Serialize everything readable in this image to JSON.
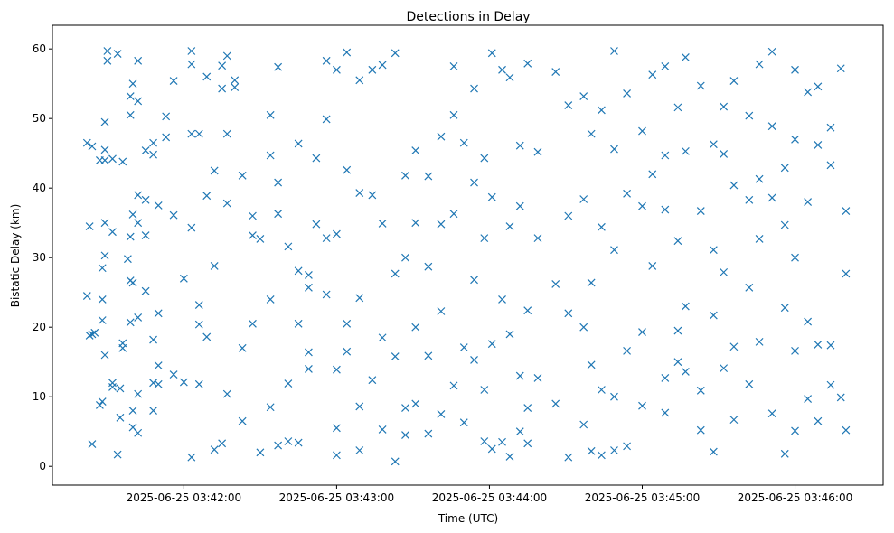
{
  "chart_data": {
    "type": "scatter",
    "title": "Detections in Delay",
    "xlabel": "Time (UTC)",
    "ylabel": "Bistatic Delay (km)",
    "x_unit": "seconds after 2025-06-25 03:41:00 UTC",
    "xlim": [
      68.4,
      394.6
    ],
    "ylim": [
      -2.7,
      63.4
    ],
    "grid": false,
    "marker": "x",
    "color": "#1f77b4",
    "x_ticks": [
      {
        "value": 120,
        "label": "2025-06-25 03:42:00"
      },
      {
        "value": 180,
        "label": "2025-06-25 03:43:00"
      },
      {
        "value": 240,
        "label": "2025-06-25 03:44:00"
      },
      {
        "value": 300,
        "label": "2025-06-25 03:45:00"
      },
      {
        "value": 360,
        "label": "2025-06-25 03:46:00"
      }
    ],
    "y_ticks": [
      {
        "value": 0,
        "label": "0"
      },
      {
        "value": 10,
        "label": "10"
      },
      {
        "value": 20,
        "label": "20"
      },
      {
        "value": 30,
        "label": "30"
      },
      {
        "value": 40,
        "label": "40"
      },
      {
        "value": 50,
        "label": "50"
      },
      {
        "value": 60,
        "label": "60"
      }
    ],
    "points_by_time": [
      {
        "t": 82,
        "y": [
          46.5,
          24.5
        ]
      },
      {
        "t": 83,
        "y": [
          34.5,
          18.8
        ]
      },
      {
        "t": 84,
        "y": [
          46,
          19,
          3.2
        ]
      },
      {
        "t": 85,
        "y": [
          19.2
        ]
      },
      {
        "t": 87,
        "y": [
          44,
          8.8
        ]
      },
      {
        "t": 88,
        "y": [
          9.3,
          28.5,
          24,
          21
        ]
      },
      {
        "t": 89,
        "y": [
          49.5,
          44,
          45.5,
          30.3,
          35,
          16
        ]
      },
      {
        "t": 90,
        "y": [
          59.7,
          58.3
        ]
      },
      {
        "t": 92,
        "y": [
          44.2,
          33.7,
          12,
          11.4
        ]
      },
      {
        "t": 94,
        "y": [
          59.3,
          1.7
        ]
      },
      {
        "t": 95,
        "y": [
          7,
          11.2
        ]
      },
      {
        "t": 96,
        "y": [
          43.8,
          17.7,
          17
        ]
      },
      {
        "t": 98,
        "y": [
          29.8
        ]
      },
      {
        "t": 99,
        "y": [
          53.2,
          50.5,
          33,
          26.7,
          20.7
        ]
      },
      {
        "t": 100,
        "y": [
          55,
          36.2,
          26.4,
          8,
          5.6
        ]
      },
      {
        "t": 102,
        "y": [
          58.3,
          52.5,
          39,
          35,
          21.4,
          10.4,
          4.8
        ]
      },
      {
        "t": 105,
        "y": [
          45.4,
          38.3,
          33.2,
          25.2
        ]
      },
      {
        "t": 108,
        "y": [
          44.8,
          46.5,
          18.2,
          12,
          8
        ]
      },
      {
        "t": 110,
        "y": [
          37.5,
          22,
          14.5,
          11.8
        ]
      },
      {
        "t": 113,
        "y": [
          47.3,
          50.3
        ]
      },
      {
        "t": 116,
        "y": [
          55.4,
          36.1,
          13.2
        ]
      },
      {
        "t": 120,
        "y": [
          27,
          12.1
        ]
      },
      {
        "t": 123,
        "y": [
          47.8,
          59.7,
          57.8,
          34.3,
          1.3
        ]
      },
      {
        "t": 126,
        "y": [
          47.8,
          23.2,
          20.4,
          11.8
        ]
      },
      {
        "t": 129,
        "y": [
          56,
          38.9,
          18.6
        ]
      },
      {
        "t": 132,
        "y": [
          42.5,
          28.8,
          2.4
        ]
      },
      {
        "t": 135,
        "y": [
          54.3,
          57.6,
          3.3
        ]
      },
      {
        "t": 137,
        "y": [
          59,
          47.8,
          37.8,
          10.4
        ]
      },
      {
        "t": 140,
        "y": [
          55.5,
          54.5
        ]
      },
      {
        "t": 143,
        "y": [
          41.8,
          17,
          6.5
        ]
      },
      {
        "t": 147,
        "y": [
          36,
          33.2,
          20.5
        ]
      },
      {
        "t": 150,
        "y": [
          32.7,
          2
        ]
      },
      {
        "t": 154,
        "y": [
          50.5,
          44.7,
          24,
          8.5
        ]
      },
      {
        "t": 157,
        "y": [
          57.4,
          40.8,
          36.3,
          3
        ]
      },
      {
        "t": 161,
        "y": [
          31.6,
          11.9,
          3.6
        ]
      },
      {
        "t": 165,
        "y": [
          46.4,
          28.1,
          20.5,
          3.4
        ]
      },
      {
        "t": 169,
        "y": [
          27.5,
          25.7,
          16.4,
          14
        ]
      },
      {
        "t": 172,
        "y": [
          44.3,
          34.8
        ]
      },
      {
        "t": 176,
        "y": [
          58.3,
          49.9,
          32.8,
          24.7
        ]
      },
      {
        "t": 180,
        "y": [
          57,
          33.4,
          13.9,
          5.5,
          1.6
        ]
      },
      {
        "t": 184,
        "y": [
          59.5,
          42.6,
          20.5,
          16.5
        ]
      },
      {
        "t": 189,
        "y": [
          55.5,
          39.3,
          24.2,
          8.6,
          2.3
        ]
      },
      {
        "t": 194,
        "y": [
          57,
          39,
          12.4
        ]
      },
      {
        "t": 198,
        "y": [
          57.7,
          34.9,
          18.5,
          5.3
        ]
      },
      {
        "t": 203,
        "y": [
          59.4,
          27.7,
          15.8,
          0.7
        ]
      },
      {
        "t": 207,
        "y": [
          41.8,
          30,
          8.4,
          4.5
        ]
      },
      {
        "t": 211,
        "y": [
          45.4,
          35,
          20,
          9
        ]
      },
      {
        "t": 216,
        "y": [
          41.7,
          28.7,
          15.9,
          4.7
        ]
      },
      {
        "t": 221,
        "y": [
          47.4,
          34.8,
          22.3,
          7.5
        ]
      },
      {
        "t": 226,
        "y": [
          57.5,
          50.5,
          36.3,
          11.6
        ]
      },
      {
        "t": 230,
        "y": [
          46.5,
          17.1,
          6.3
        ]
      },
      {
        "t": 234,
        "y": [
          54.3,
          40.8,
          26.8,
          15.3
        ]
      },
      {
        "t": 238,
        "y": [
          44.3,
          32.8,
          11,
          3.6
        ]
      },
      {
        "t": 241,
        "y": [
          59.4,
          38.7,
          17.6,
          2.5
        ]
      },
      {
        "t": 245,
        "y": [
          57,
          24,
          3.5
        ]
      },
      {
        "t": 248,
        "y": [
          55.9,
          34.5,
          19,
          1.4
        ]
      },
      {
        "t": 252,
        "y": [
          46.1,
          37.4,
          13,
          5
        ]
      },
      {
        "t": 255,
        "y": [
          57.9,
          22.4,
          8.4,
          3.3
        ]
      },
      {
        "t": 259,
        "y": [
          45.2,
          32.8,
          12.7
        ]
      },
      {
        "t": 266,
        "y": [
          56.7,
          26.2,
          9
        ]
      },
      {
        "t": 271,
        "y": [
          51.9,
          36,
          22,
          1.3
        ]
      },
      {
        "t": 277,
        "y": [
          53.2,
          38.4,
          20,
          6
        ]
      },
      {
        "t": 280,
        "y": [
          47.8,
          26.4,
          14.6,
          2.2
        ]
      },
      {
        "t": 284,
        "y": [
          51.2,
          34.4,
          11,
          1.6
        ]
      },
      {
        "t": 289,
        "y": [
          59.7,
          45.6,
          31.1,
          10,
          2.3
        ]
      },
      {
        "t": 294,
        "y": [
          53.6,
          39.2,
          16.6,
          2.9
        ]
      },
      {
        "t": 300,
        "y": [
          48.2,
          37.4,
          19.3,
          8.7
        ]
      },
      {
        "t": 304,
        "y": [
          56.3,
          42,
          28.8
        ]
      },
      {
        "t": 309,
        "y": [
          57.5,
          44.7,
          36.9,
          12.7,
          7.7
        ]
      },
      {
        "t": 314,
        "y": [
          51.6,
          32.4,
          19.5,
          15
        ]
      },
      {
        "t": 317,
        "y": [
          58.8,
          45.3,
          23,
          13.6
        ]
      },
      {
        "t": 323,
        "y": [
          54.7,
          36.7,
          10.9,
          5.2
        ]
      },
      {
        "t": 328,
        "y": [
          46.3,
          31.1,
          21.7,
          2.1
        ]
      },
      {
        "t": 332,
        "y": [
          51.7,
          44.9,
          27.9,
          14.1
        ]
      },
      {
        "t": 336,
        "y": [
          55.4,
          40.4,
          17.2,
          6.7
        ]
      },
      {
        "t": 342,
        "y": [
          38.3,
          50.4,
          25.7,
          11.8
        ]
      },
      {
        "t": 346,
        "y": [
          57.8,
          41.3,
          32.7,
          17.9
        ]
      },
      {
        "t": 351,
        "y": [
          59.6,
          48.9,
          38.6,
          7.6
        ]
      },
      {
        "t": 356,
        "y": [
          42.9,
          34.7,
          22.8,
          1.8
        ]
      },
      {
        "t": 360,
        "y": [
          57,
          47,
          30,
          16.6,
          5.1
        ]
      },
      {
        "t": 365,
        "y": [
          53.8,
          38,
          20.8,
          9.7
        ]
      },
      {
        "t": 369,
        "y": [
          54.6,
          46.2,
          17.5,
          6.5
        ]
      },
      {
        "t": 374,
        "y": [
          48.7,
          43.3,
          17.4,
          11.7
        ]
      },
      {
        "t": 378,
        "y": [
          57.2,
          9.9
        ]
      },
      {
        "t": 380,
        "y": [
          36.7,
          27.7,
          5.2
        ]
      }
    ]
  }
}
